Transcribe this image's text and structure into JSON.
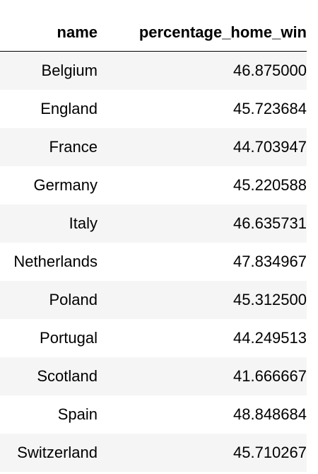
{
  "table": {
    "columns": [
      "name",
      "percentage_home_win"
    ],
    "rows": [
      {
        "name": "Belgium",
        "value": "46.875000"
      },
      {
        "name": "England",
        "value": "45.723684"
      },
      {
        "name": "France",
        "value": "44.703947"
      },
      {
        "name": "Germany",
        "value": "45.220588"
      },
      {
        "name": "Italy",
        "value": "46.635731"
      },
      {
        "name": "Netherlands",
        "value": "47.834967"
      },
      {
        "name": "Poland",
        "value": "45.312500"
      },
      {
        "name": "Portugal",
        "value": "44.249513"
      },
      {
        "name": "Scotland",
        "value": "41.666667"
      },
      {
        "name": "Spain",
        "value": "48.848684"
      },
      {
        "name": "Switzerland",
        "value": "45.710267"
      }
    ]
  }
}
